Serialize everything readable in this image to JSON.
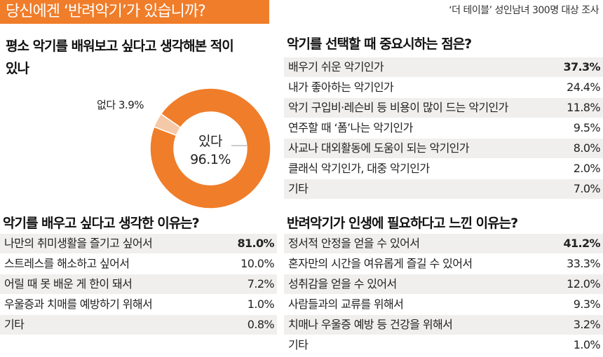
{
  "header": {
    "title": "당신에겐 ‘반려악기’가 있습니까?",
    "source": "‘더 테이블’ 성인남녀 300명 대상 조사"
  },
  "colors": {
    "accent": "#f07d2a",
    "accent_light": "#f5c9a8",
    "row_gray": "#f0efee"
  },
  "chart_data": [
    {
      "type": "pie",
      "title": "평소 악기를 배워보고 싶다고 생각해본 적이 있나",
      "labels": [
        "있다",
        "없다"
      ],
      "values": [
        96.1,
        3.9
      ],
      "value_labels": [
        "96.1%",
        "3.9%"
      ]
    },
    {
      "type": "table",
      "title": "악기를 선택할 때 중요시하는 점은?",
      "rows": [
        {
          "label": "배우기 쉬운 악기인가",
          "value": "37.3%"
        },
        {
          "label": "내가 좋아하는 악기인가",
          "value": "24.4%"
        },
        {
          "label": "악기 구입비·레슨비 등 비용이 많이 드는 악기인가",
          "value": "11.8%"
        },
        {
          "label": "연주할 때 ‘폼’나는 악기인가",
          "value": "9.5%"
        },
        {
          "label": "사교나 대외활동에 도움이 되는 악기인가",
          "value": "8.0%"
        },
        {
          "label": "클래식 악기인가, 대중 악기인가",
          "value": "2.0%"
        },
        {
          "label": "기타",
          "value": "7.0%"
        }
      ]
    },
    {
      "type": "table",
      "title": "악기를 배우고 싶다고 생각한 이유는?",
      "rows": [
        {
          "label": "나만의 취미생활을 즐기고 싶어서",
          "value": "81.0%"
        },
        {
          "label": "스트레스를 해소하고 싶어서",
          "value": "10.0%"
        },
        {
          "label": "어릴 때 못 배운 게 한이 돼서",
          "value": "7.2%"
        },
        {
          "label": "우울증과 치매를 예방하기 위해서",
          "value": "1.0%"
        },
        {
          "label": "기타",
          "value": "0.8%"
        }
      ]
    },
    {
      "type": "table",
      "title": "반려악기가 인생에 필요하다고 느낀 이유는?",
      "rows": [
        {
          "label": "정서적 안정을 얻을 수 있어서",
          "value": "41.2%"
        },
        {
          "label": "혼자만의 시간을 여유롭게 즐길 수 있어서",
          "value": "33.3%"
        },
        {
          "label": "성취감을 얻을 수 있어서",
          "value": "12.0%"
        },
        {
          "label": "사람들과의 교류를 위해서",
          "value": "9.3%"
        },
        {
          "label": "치매나 우울증 예방 등 건강을 위해서",
          "value": "3.2%"
        },
        {
          "label": "기타",
          "value": "1.0%"
        }
      ]
    }
  ]
}
